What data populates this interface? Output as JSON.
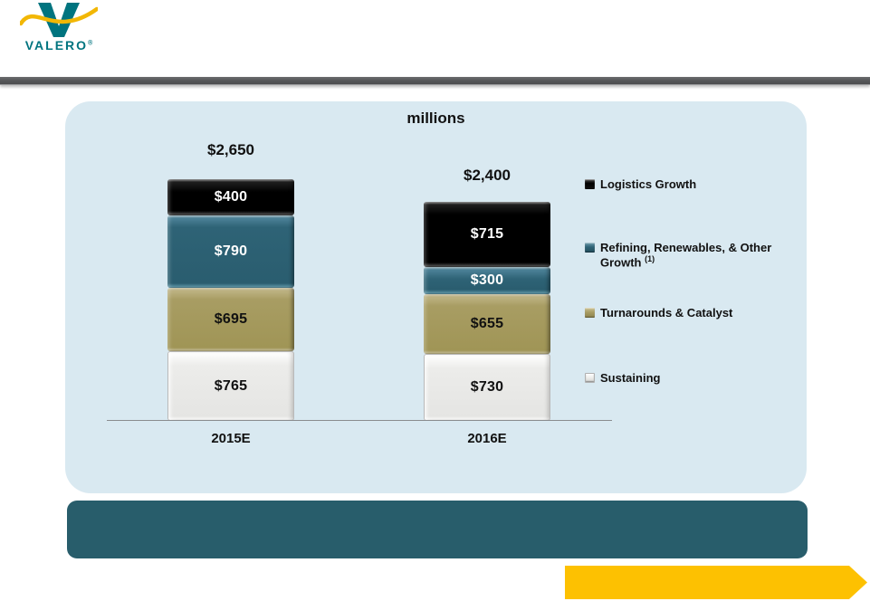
{
  "logo": {
    "wordmark": "VALERO",
    "registered": "®"
  },
  "colors": {
    "panel_bg": "#d9e9f1",
    "banner": "#285d6b",
    "arrow": "#fdc101",
    "divider": "#555658",
    "logo_teal": "#00747f",
    "logo_yellow": "#f2b705"
  },
  "chart_data": {
    "type": "bar",
    "stacked": true,
    "title": "millions",
    "categories": [
      "2015E",
      "2016E"
    ],
    "series": [
      {
        "key": "logistics",
        "name": "Logistics Growth",
        "values": [
          400,
          715
        ],
        "labels": [
          "$400",
          "$715"
        ],
        "color": "#0b0b0b",
        "label_color": "#ffffff"
      },
      {
        "key": "refining",
        "name": "Refining, Renewables, & Other Growth (1)",
        "values": [
          790,
          300
        ],
        "labels": [
          "$790",
          "$300"
        ],
        "color": "#2e6376",
        "label_color": "#ffffff"
      },
      {
        "key": "turnarounds",
        "name": "Turnarounds & Catalyst",
        "values": [
          695,
          655
        ],
        "labels": [
          "$695",
          "$655"
        ],
        "color": "#a89d63",
        "label_color": "#111111"
      },
      {
        "key": "sustaining",
        "name": "Sustaining",
        "values": [
          765,
          730
        ],
        "labels": [
          "$765",
          "$730"
        ],
        "color": "#ececea",
        "label_color": "#111111"
      }
    ],
    "totals": [
      2650,
      2400
    ],
    "total_labels": [
      "$2,650",
      "$2,400"
    ],
    "ylim": [
      0,
      2650
    ],
    "grid": false,
    "legend_position": "right",
    "legend": [
      {
        "label": "Logistics Growth",
        "sup": ""
      },
      {
        "label": "Refining, Renewables, & Other Growth",
        "sup": "(1)"
      },
      {
        "label": "Turnarounds & Catalyst",
        "sup": ""
      },
      {
        "label": "Sustaining",
        "sup": ""
      }
    ]
  }
}
